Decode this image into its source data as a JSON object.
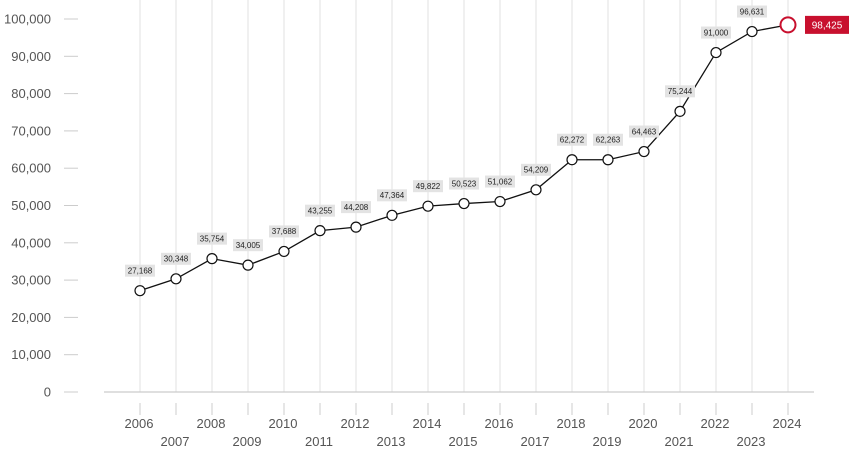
{
  "chart_data": {
    "type": "line",
    "title": "",
    "xlabel": "",
    "ylabel": "",
    "x": [
      "2006",
      "2007",
      "2008",
      "2009",
      "2010",
      "2011",
      "2012",
      "2013",
      "2014",
      "2015",
      "2016",
      "2017",
      "2018",
      "2019",
      "2020",
      "2021",
      "2022",
      "2023",
      "2024"
    ],
    "values": [
      27168,
      30348,
      35754,
      34005,
      37688,
      43255,
      44208,
      47364,
      49822,
      50523,
      51062,
      54209,
      62272,
      62263,
      64463,
      75244,
      91000,
      96631,
      98425
    ],
    "labels": [
      "27,168",
      "30,348",
      "35,754",
      "34,005",
      "37,688",
      "43,255",
      "44,208",
      "47,364",
      "49,822",
      "50,523",
      "51,062",
      "54,209",
      "62,272",
      "62,263",
      "64,463",
      "75,244",
      "91,000",
      "96,631",
      "98,425"
    ],
    "ylim": [
      0,
      100000
    ],
    "yticks": [
      0,
      10000,
      20000,
      30000,
      40000,
      50000,
      60000,
      70000,
      80000,
      90000,
      100000
    ],
    "ytick_labels": [
      "0",
      "10,000",
      "20,000",
      "30,000",
      "40,000",
      "50,000",
      "60,000",
      "70,000",
      "80,000",
      "90,000",
      "100,000"
    ],
    "grid": "vertical",
    "colors": {
      "line": "#111111",
      "marker_fill": "#ffffff",
      "highlight": "#c8102e",
      "label_box": "#e3e3e3",
      "grid": "#e6e6e6",
      "axis": "#cccccc"
    }
  }
}
